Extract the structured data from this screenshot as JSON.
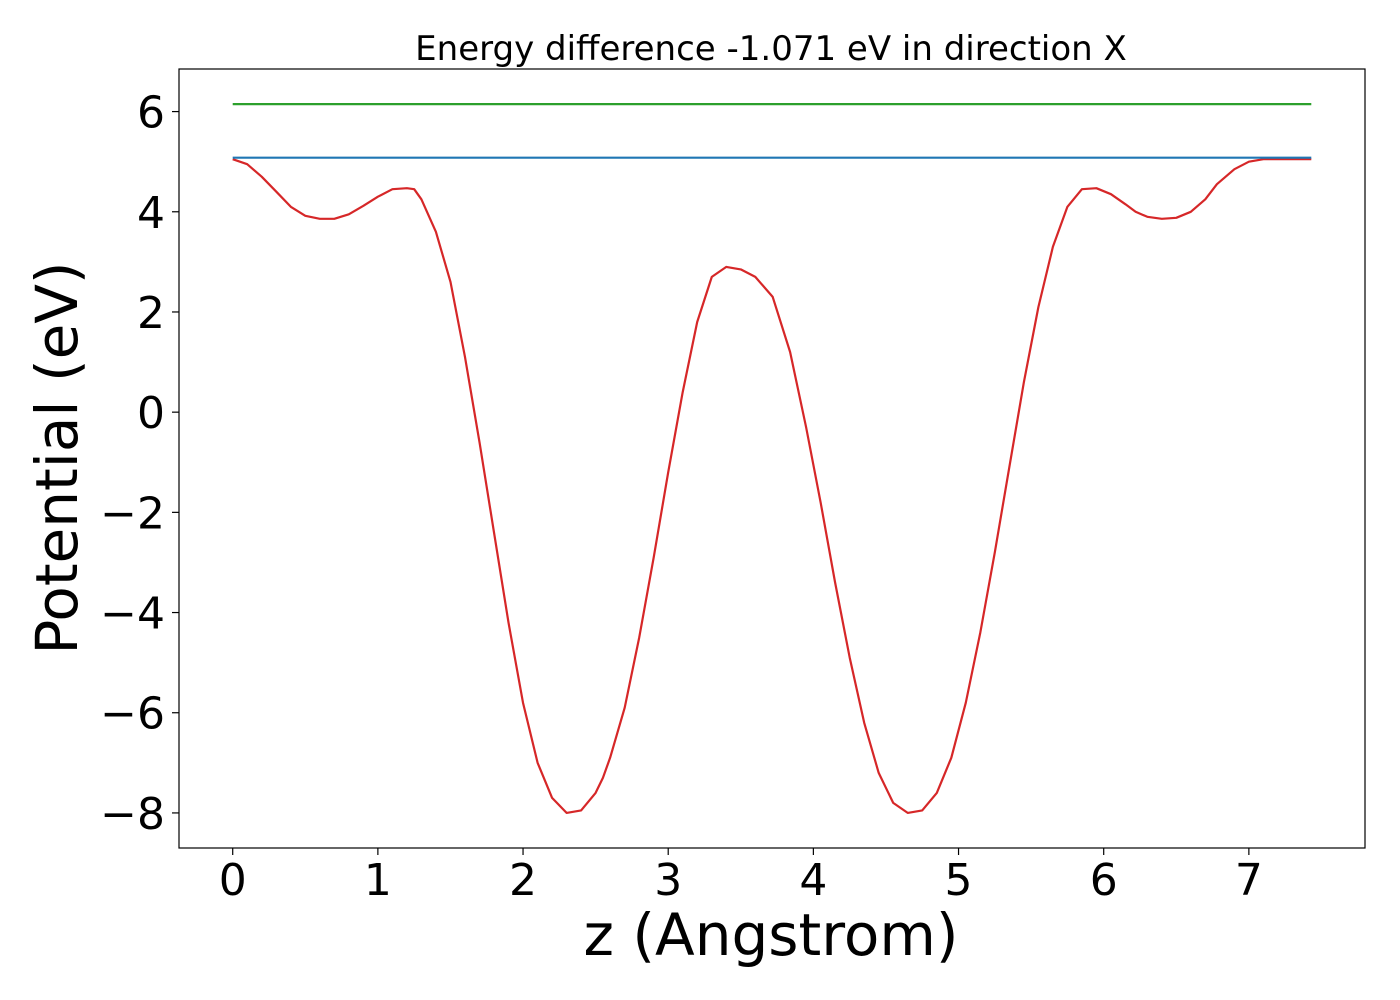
{
  "chart_data": {
    "type": "line",
    "title": "Energy difference -1.071 eV in direction X",
    "xlabel": "z (Angstrom)",
    "ylabel": "Potential (eV)",
    "xlim": [
      -0.37,
      7.8
    ],
    "ylim": [
      -8.7,
      6.85
    ],
    "xticks": [
      0,
      1,
      2,
      3,
      4,
      5,
      6,
      7
    ],
    "yticks": [
      6,
      4,
      2,
      0,
      -2,
      -4,
      -6,
      -8
    ],
    "xtick_labels": [
      "0",
      "1",
      "2",
      "3",
      "4",
      "5",
      "6",
      "7"
    ],
    "ytick_labels": [
      "6",
      "4",
      "2",
      "0",
      "−2",
      "−4",
      "−6",
      "−8"
    ],
    "grid": false,
    "series": [
      {
        "color": "#d62728",
        "x": [
          0,
          0.1,
          0.2,
          0.3,
          0.4,
          0.5,
          0.6,
          0.7,
          0.8,
          0.9,
          1.0,
          1.1,
          1.2,
          1.25,
          1.3,
          1.4,
          1.5,
          1.6,
          1.7,
          1.8,
          1.9,
          2.0,
          2.1,
          2.2,
          2.3,
          2.4,
          2.5,
          2.55,
          2.6,
          2.7,
          2.8,
          2.9,
          3.0,
          3.1,
          3.2,
          3.3,
          3.4,
          3.5,
          3.6,
          3.72,
          3.84,
          3.95,
          4.05,
          4.15,
          4.25,
          4.35,
          4.45,
          4.55,
          4.65,
          4.75,
          4.85,
          4.95,
          5.05,
          5.15,
          5.25,
          5.35,
          5.45,
          5.55,
          5.65,
          5.75,
          5.85,
          5.95,
          6.05,
          6.15,
          6.22,
          6.3,
          6.4,
          6.5,
          6.6,
          6.7,
          6.78,
          6.9,
          7.0,
          7.1,
          7.2,
          7.3,
          7.43
        ],
        "y": [
          5.05,
          4.95,
          4.7,
          4.4,
          4.1,
          3.92,
          3.86,
          3.86,
          3.95,
          4.12,
          4.3,
          4.45,
          4.47,
          4.45,
          4.25,
          3.6,
          2.6,
          1.1,
          -0.6,
          -2.4,
          -4.2,
          -5.8,
          -7.0,
          -7.7,
          -8.0,
          -7.95,
          -7.6,
          -7.3,
          -6.9,
          -5.9,
          -4.5,
          -2.9,
          -1.2,
          0.4,
          1.8,
          2.7,
          2.9,
          2.85,
          2.7,
          2.3,
          1.2,
          -0.3,
          -1.8,
          -3.4,
          -4.9,
          -6.2,
          -7.2,
          -7.8,
          -8.0,
          -7.95,
          -7.6,
          -6.9,
          -5.8,
          -4.4,
          -2.8,
          -1.1,
          0.6,
          2.1,
          3.3,
          4.1,
          4.45,
          4.47,
          4.35,
          4.15,
          4.0,
          3.9,
          3.86,
          3.88,
          4.0,
          4.25,
          4.55,
          4.85,
          5.0,
          5.05,
          5.05,
          5.05,
          5.05
        ]
      },
      {
        "color": "#1f77b4",
        "x": [
          0,
          7.43
        ],
        "y": [
          5.08,
          5.08
        ]
      },
      {
        "color": "#2ca02c",
        "x": [
          0,
          7.43
        ],
        "y": [
          6.15,
          6.15
        ]
      }
    ]
  }
}
